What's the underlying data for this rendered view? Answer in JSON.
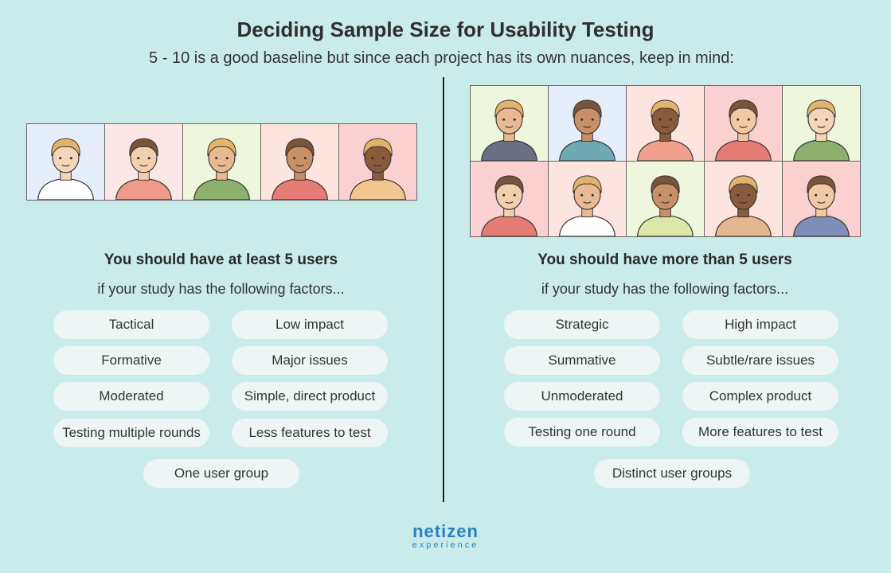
{
  "header": {
    "title": "Deciding Sample Size for Usability Testing",
    "subtitle": "5 - 10 is a good baseline but since each project has its own nuances, keep in mind:"
  },
  "left": {
    "heading": "You should have at least 5 users",
    "subheading": "if your study has the following factors...",
    "factors": [
      "Tactical",
      "Low impact",
      "Formative",
      "Major issues",
      "Moderated",
      "Simple, direct product",
      "Testing multiple rounds",
      "Less features to test"
    ],
    "last_factor": "One user group",
    "avatar_bgs": [
      "#e6eefc",
      "#fde6e6",
      "#eef6dc",
      "#fde4df",
      "#fbd0d0"
    ],
    "shirts": [
      "#ffffff",
      "#ef9a8b",
      "#8db06d",
      "#e57d76",
      "#f2c78f"
    ]
  },
  "right": {
    "heading": "You should have more than 5 users",
    "subheading": "if your study has the following factors...",
    "factors": [
      "Strategic",
      "High impact",
      "Summative",
      "Subtle/rare issues",
      "Unmoderated",
      "Complex product",
      "Testing one round",
      "More features to test"
    ],
    "last_factor": "Distinct user groups",
    "avatar_bgs": [
      "#eef6dc",
      "#e6eefc",
      "#fde4df",
      "#fbd0d0",
      "#eef6dc",
      "#fbd0d0",
      "#fde4df",
      "#eef6dc",
      "#fde4df",
      "#fbd0d0"
    ],
    "shirts": [
      "#6b6f86",
      "#6fa9b4",
      "#f2a08e",
      "#e57d76",
      "#8db06d",
      "#e57d76",
      "#ffffff",
      "#dce7a8",
      "#e6b68e",
      "#7d8fb8"
    ]
  },
  "logo": {
    "main": "netizen",
    "sub": "experience"
  },
  "colors": {
    "background": "#c9ecea",
    "pill": "#eef6f5",
    "logo": "#2a7fc1"
  }
}
